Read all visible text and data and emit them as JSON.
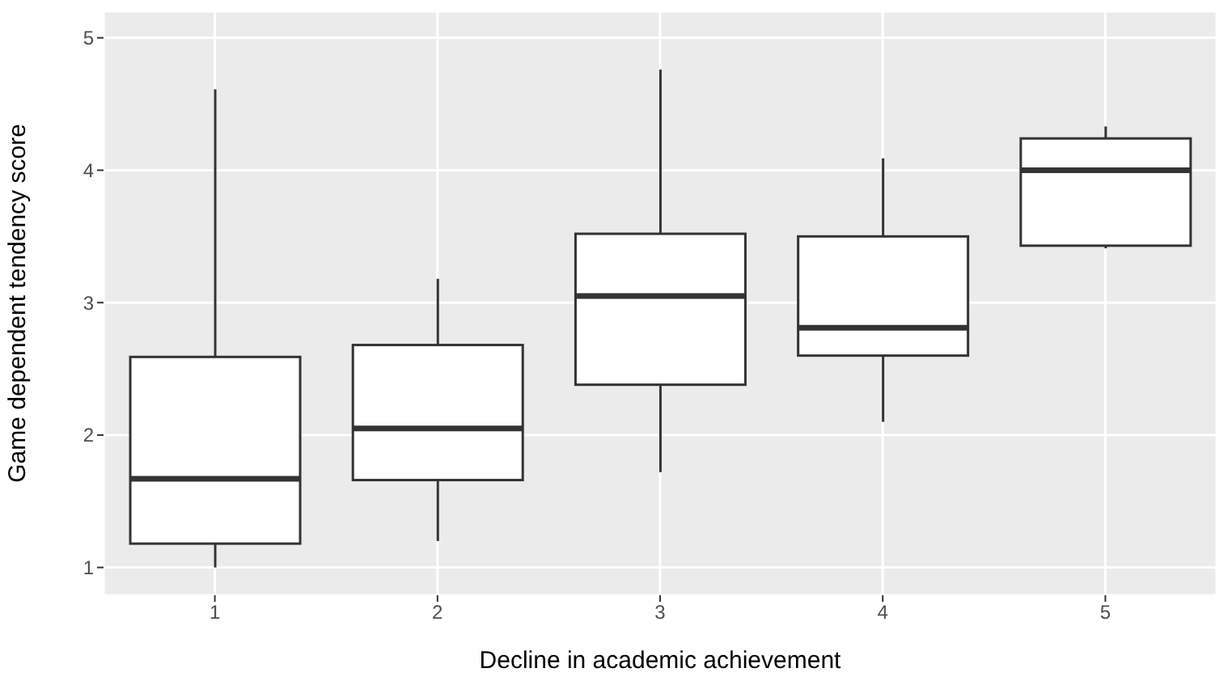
{
  "chart_data": {
    "type": "box",
    "xlabel": "Decline in academic achievement",
    "ylabel": "Game dependent tendency score",
    "categories": [
      "1",
      "2",
      "3",
      "4",
      "5"
    ],
    "boxes": [
      {
        "low": 1.0,
        "q1": 1.18,
        "median": 1.67,
        "q3": 2.59,
        "high": 4.61
      },
      {
        "low": 1.2,
        "q1": 1.66,
        "median": 2.05,
        "q3": 2.68,
        "high": 3.18
      },
      {
        "low": 1.72,
        "q1": 2.38,
        "median": 3.05,
        "q3": 3.52,
        "high": 4.76
      },
      {
        "low": 2.1,
        "q1": 2.6,
        "median": 2.81,
        "q3": 3.5,
        "high": 4.09
      },
      {
        "low": 3.41,
        "q1": 3.43,
        "median": 4.0,
        "q3": 4.24,
        "high": 4.33
      }
    ],
    "color": "#333333",
    "ylim": [
      0.79,
      5.2
    ],
    "yticks": [
      1,
      2,
      3,
      4,
      5
    ],
    "grid": true
  }
}
